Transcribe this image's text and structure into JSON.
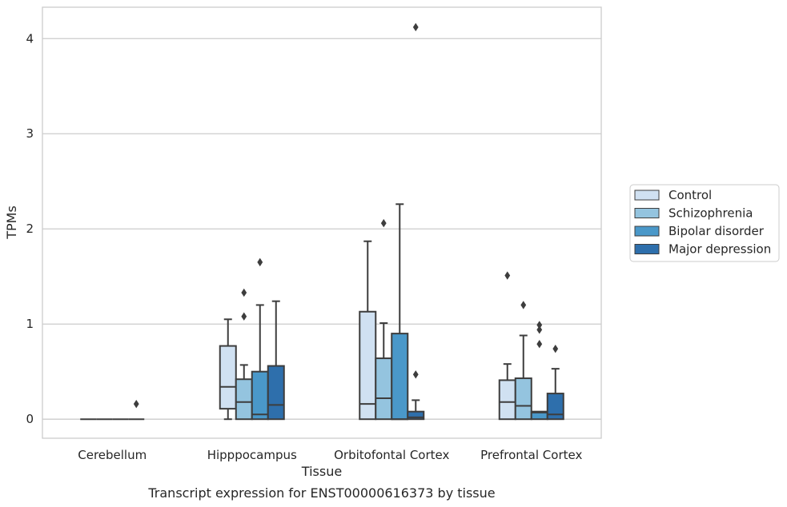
{
  "caption": "Transcript expression for ENST00000616373 by tissue",
  "chart_data": {
    "type": "box",
    "xlabel": "Tissue",
    "ylabel": "TPMs",
    "categories": [
      "Cerebellum",
      "Hipppocampus",
      "Orbitofontal Cortex",
      "Prefrontal Cortex"
    ],
    "ylim": [
      -0.2,
      4.33
    ],
    "yticks": [
      0,
      1,
      2,
      3,
      4
    ],
    "grid": "horizontal",
    "legend_position": "right",
    "series": [
      {
        "name": "Control",
        "color": "#d0e1f2",
        "boxes": [
          {
            "q1": 0,
            "median": 0,
            "q3": 0,
            "whisker_low": 0,
            "whisker_high": 0,
            "outliers": []
          },
          {
            "q1": 0.11,
            "median": 0.34,
            "q3": 0.77,
            "whisker_low": 0,
            "whisker_high": 1.05,
            "outliers": []
          },
          {
            "q1": 0,
            "median": 0.16,
            "q3": 1.13,
            "whisker_low": 0,
            "whisker_high": 1.87,
            "outliers": []
          },
          {
            "q1": 0,
            "median": 0.18,
            "q3": 0.41,
            "whisker_low": 0,
            "whisker_high": 0.58,
            "outliers": [
              1.51
            ]
          }
        ]
      },
      {
        "name": "Schizophrenia",
        "color": "#94c4df",
        "boxes": [
          {
            "q1": 0,
            "median": 0,
            "q3": 0,
            "whisker_low": 0,
            "whisker_high": 0,
            "outliers": []
          },
          {
            "q1": 0,
            "median": 0.18,
            "q3": 0.42,
            "whisker_low": 0,
            "whisker_high": 0.57,
            "outliers": [
              1.08,
              1.33
            ]
          },
          {
            "q1": 0,
            "median": 0.22,
            "q3": 0.64,
            "whisker_low": 0,
            "whisker_high": 1.01,
            "outliers": [
              2.06
            ]
          },
          {
            "q1": 0,
            "median": 0.14,
            "q3": 0.43,
            "whisker_low": 0,
            "whisker_high": 0.88,
            "outliers": [
              1.2
            ]
          }
        ]
      },
      {
        "name": "Bipolar disorder",
        "color": "#4a98c9",
        "boxes": [
          {
            "q1": 0,
            "median": 0,
            "q3": 0,
            "whisker_low": 0,
            "whisker_high": 0,
            "outliers": []
          },
          {
            "q1": 0,
            "median": 0.05,
            "q3": 0.5,
            "whisker_low": 0,
            "whisker_high": 1.2,
            "outliers": [
              1.65
            ]
          },
          {
            "q1": 0,
            "median": 0,
            "q3": 0.9,
            "whisker_low": 0,
            "whisker_high": 2.26,
            "outliers": []
          },
          {
            "q1": 0,
            "median": 0.07,
            "q3": 0.08,
            "whisker_low": 0,
            "whisker_high": 0.08,
            "outliers": [
              0.79,
              0.94,
              0.99
            ]
          }
        ]
      },
      {
        "name": "Major depression",
        "color": "#2e6fac",
        "boxes": [
          {
            "q1": 0,
            "median": 0,
            "q3": 0,
            "whisker_low": 0,
            "whisker_high": 0,
            "outliers": [
              0.16
            ]
          },
          {
            "q1": 0,
            "median": 0.15,
            "q3": 0.56,
            "whisker_low": 0,
            "whisker_high": 1.24,
            "outliers": []
          },
          {
            "q1": 0,
            "median": 0.02,
            "q3": 0.08,
            "whisker_low": 0,
            "whisker_high": 0.2,
            "outliers": [
              0.47,
              4.12
            ]
          },
          {
            "q1": 0,
            "median": 0.05,
            "q3": 0.27,
            "whisker_low": 0,
            "whisker_high": 0.53,
            "outliers": [
              0.74
            ]
          }
        ]
      }
    ]
  }
}
